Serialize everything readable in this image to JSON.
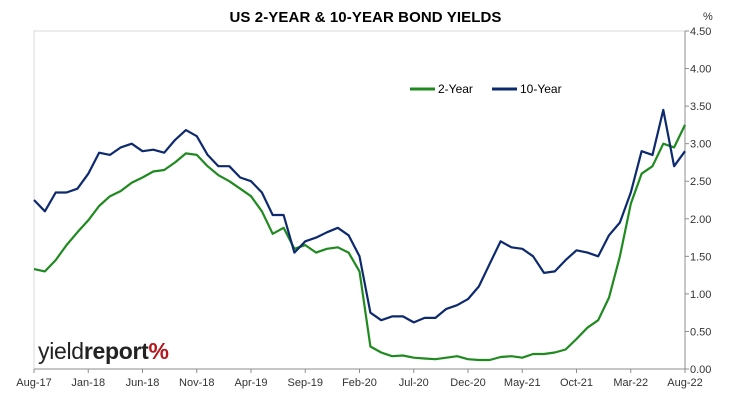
{
  "chart_data": {
    "type": "line",
    "title": "US 2-YEAR & 10-YEAR BOND YIELDS",
    "y_unit": "%",
    "ylim": [
      0,
      4.5
    ],
    "y_ticks": [
      "0.00",
      "0.50",
      "1.00",
      "1.50",
      "2.00",
      "2.50",
      "3.00",
      "3.50",
      "4.00",
      "4.50"
    ],
    "x_ticks": [
      "Aug-17",
      "Jan-18",
      "Jun-18",
      "Nov-18",
      "Apr-19",
      "Sep-19",
      "Feb-20",
      "Jul-20",
      "Dec-20",
      "May-21",
      "Oct-21",
      "Mar-22",
      "Aug-22"
    ],
    "x": [
      "Aug-17",
      "Sep-17",
      "Oct-17",
      "Nov-17",
      "Dec-17",
      "Jan-18",
      "Feb-18",
      "Mar-18",
      "Apr-18",
      "May-18",
      "Jun-18",
      "Jul-18",
      "Aug-18",
      "Sep-18",
      "Oct-18",
      "Nov-18",
      "Dec-18",
      "Jan-19",
      "Feb-19",
      "Mar-19",
      "Apr-19",
      "May-19",
      "Jun-19",
      "Jul-19",
      "Aug-19",
      "Sep-19",
      "Oct-19",
      "Nov-19",
      "Dec-19",
      "Jan-20",
      "Feb-20",
      "Mar-20",
      "Apr-20",
      "May-20",
      "Jun-20",
      "Jul-20",
      "Aug-20",
      "Sep-20",
      "Oct-20",
      "Nov-20",
      "Dec-20",
      "Jan-21",
      "Feb-21",
      "Mar-21",
      "Apr-21",
      "May-21",
      "Jun-21",
      "Jul-21",
      "Aug-21",
      "Sep-21",
      "Oct-21",
      "Nov-21",
      "Dec-21",
      "Jan-22",
      "Feb-22",
      "Mar-22",
      "Apr-22",
      "May-22",
      "Jun-22",
      "Jul-22",
      "Aug-22"
    ],
    "series": [
      {
        "name": "2-Year",
        "color": "#1f8a1f",
        "values": [
          1.33,
          1.3,
          1.45,
          1.65,
          1.82,
          1.98,
          2.17,
          2.3,
          2.37,
          2.48,
          2.55,
          2.63,
          2.65,
          2.75,
          2.87,
          2.85,
          2.7,
          2.58,
          2.5,
          2.4,
          2.3,
          2.1,
          1.8,
          1.88,
          1.6,
          1.65,
          1.55,
          1.6,
          1.62,
          1.55,
          1.3,
          0.3,
          0.22,
          0.17,
          0.18,
          0.15,
          0.14,
          0.13,
          0.15,
          0.17,
          0.13,
          0.12,
          0.12,
          0.16,
          0.17,
          0.15,
          0.2,
          0.2,
          0.22,
          0.26,
          0.4,
          0.55,
          0.65,
          0.95,
          1.5,
          2.2,
          2.6,
          2.7,
          3.0,
          2.95,
          3.25
        ]
      },
      {
        "name": "10-Year",
        "color": "#0e2a6e",
        "values": [
          2.25,
          2.1,
          2.35,
          2.35,
          2.4,
          2.6,
          2.88,
          2.85,
          2.95,
          3.0,
          2.9,
          2.92,
          2.88,
          3.05,
          3.18,
          3.1,
          2.85,
          2.7,
          2.7,
          2.55,
          2.5,
          2.35,
          2.05,
          2.05,
          1.55,
          1.7,
          1.75,
          1.82,
          1.88,
          1.78,
          1.5,
          0.75,
          0.65,
          0.7,
          0.7,
          0.62,
          0.68,
          0.68,
          0.8,
          0.85,
          0.93,
          1.1,
          1.4,
          1.7,
          1.62,
          1.6,
          1.5,
          1.28,
          1.3,
          1.45,
          1.58,
          1.55,
          1.5,
          1.78,
          1.95,
          2.35,
          2.9,
          2.85,
          3.45,
          2.7,
          2.9
        ]
      }
    ],
    "legend": "top-right",
    "grid": false
  },
  "logo": {
    "part1": "yield",
    "part2": "report",
    "part3": "%"
  }
}
